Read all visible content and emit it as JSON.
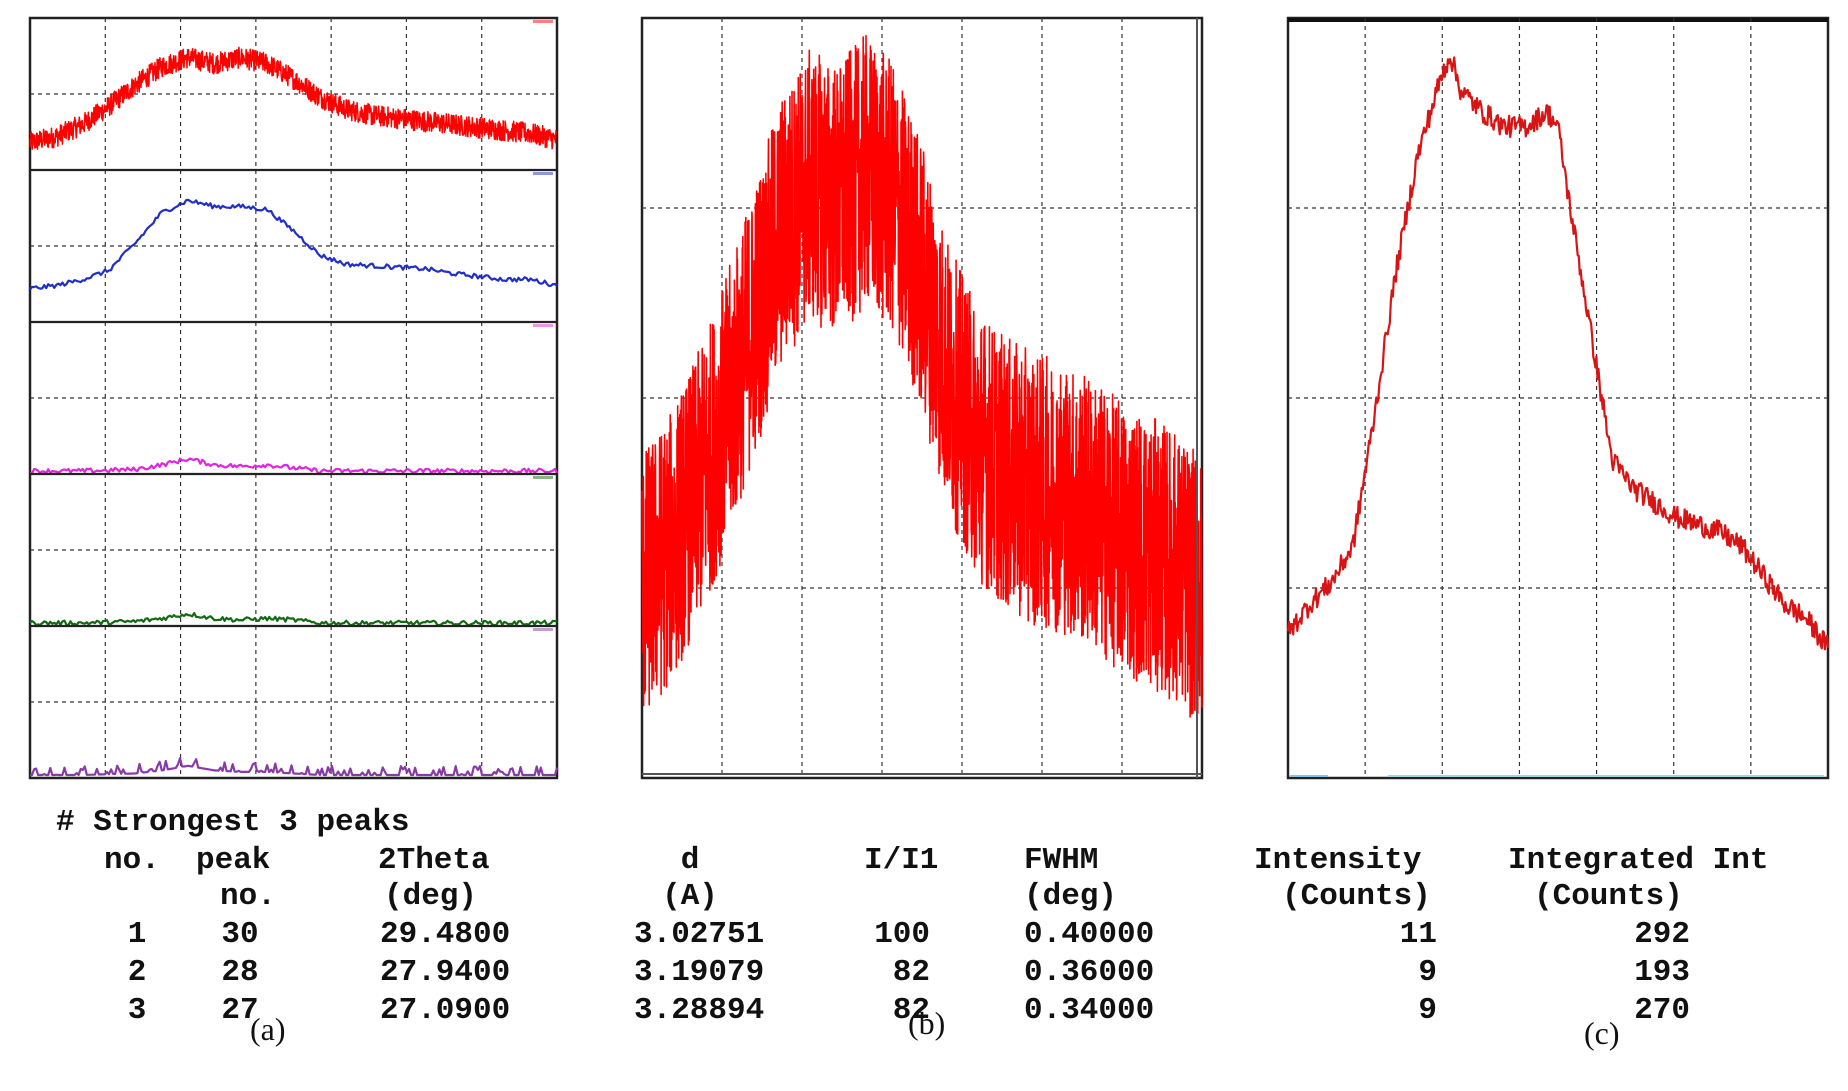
{
  "panels": {
    "a": {
      "caption": "(a)"
    },
    "b": {
      "caption": "(b)"
    },
    "c": {
      "caption": "(c)"
    }
  },
  "peak_table": {
    "title": "# Strongest 3 peaks",
    "headers": [
      [
        "no.",
        ""
      ],
      [
        "peak",
        "no."
      ],
      [
        "2Theta",
        "(deg)"
      ],
      [
        "d",
        "(A)"
      ],
      [
        "I/I1",
        ""
      ],
      [
        "FWHM",
        "(deg)"
      ],
      [
        "Intensity",
        "(Counts)"
      ],
      [
        "Integrated Int",
        "(Counts)"
      ]
    ],
    "rows": [
      [
        "1",
        "30",
        "29.4800",
        "3.02751",
        "100",
        "0.40000",
        "11",
        "292"
      ],
      [
        "2",
        "28",
        "27.9400",
        "3.19079",
        "82",
        "0.36000",
        "9",
        "193"
      ],
      [
        "3",
        "27",
        "27.0900",
        "3.28894",
        "82",
        "0.34000",
        "9",
        "270"
      ]
    ]
  },
  "chart_data": [
    {
      "panel": "(a)",
      "type": "line",
      "title": "",
      "xlabel": "",
      "ylabel": "",
      "grid": true,
      "grid_divisions": {
        "x": 7,
        "y_per_strip": 2
      },
      "stacked_strips": 5,
      "series": [
        {
          "color": "#ff0000",
          "noise": "high",
          "x": [
            0,
            5,
            10,
            15,
            20,
            25,
            30,
            35,
            40,
            45,
            50,
            55,
            60,
            65,
            70,
            75,
            80,
            85,
            90,
            95,
            100
          ],
          "y": [
            0.18,
            0.22,
            0.3,
            0.42,
            0.56,
            0.68,
            0.74,
            0.7,
            0.74,
            0.7,
            0.6,
            0.48,
            0.4,
            0.36,
            0.34,
            0.32,
            0.3,
            0.28,
            0.26,
            0.24,
            0.2
          ]
        },
        {
          "color": "#1f2fc8",
          "noise": "low",
          "x": [
            0,
            5,
            10,
            15,
            20,
            25,
            30,
            35,
            40,
            45,
            50,
            55,
            60,
            65,
            70,
            75,
            80,
            85,
            90,
            95,
            100
          ],
          "y": [
            0.22,
            0.24,
            0.28,
            0.34,
            0.52,
            0.72,
            0.8,
            0.76,
            0.76,
            0.74,
            0.6,
            0.44,
            0.38,
            0.37,
            0.36,
            0.35,
            0.32,
            0.3,
            0.28,
            0.28,
            0.24
          ]
        },
        {
          "color": "#e024e0",
          "noise": "low",
          "x": [
            0,
            10,
            20,
            25,
            30,
            35,
            40,
            45,
            50,
            55,
            60,
            70,
            80,
            90,
            100
          ],
          "y": [
            0.02,
            0.02,
            0.03,
            0.06,
            0.1,
            0.06,
            0.05,
            0.06,
            0.04,
            0.02,
            0.02,
            0.02,
            0.02,
            0.02,
            0.02
          ]
        },
        {
          "color": "#126b12",
          "noise": "low",
          "x": [
            0,
            10,
            20,
            25,
            30,
            35,
            40,
            45,
            50,
            55,
            60,
            70,
            80,
            90,
            100
          ],
          "y": [
            0.02,
            0.02,
            0.03,
            0.05,
            0.08,
            0.05,
            0.04,
            0.05,
            0.04,
            0.02,
            0.02,
            0.02,
            0.02,
            0.02,
            0.02
          ]
        },
        {
          "color": "#8a3aa8",
          "noise": "spiky",
          "x": [
            0,
            10,
            20,
            25,
            30,
            35,
            40,
            45,
            50,
            55,
            60,
            70,
            80,
            90,
            100
          ],
          "y": [
            0.02,
            0.02,
            0.03,
            0.05,
            0.08,
            0.05,
            0.04,
            0.04,
            0.03,
            0.02,
            0.02,
            0.02,
            0.02,
            0.02,
            0.02
          ]
        }
      ]
    },
    {
      "panel": "(b)",
      "type": "line",
      "title": "",
      "xlabel": "",
      "ylabel": "",
      "grid": true,
      "grid_divisions": {
        "x": 7,
        "y": 4
      },
      "ylim": [
        0,
        1
      ],
      "series": [
        {
          "color": "#ff0000",
          "noise": "very high",
          "x": [
            0,
            5,
            10,
            15,
            20,
            25,
            30,
            35,
            40,
            45,
            50,
            55,
            60,
            65,
            70,
            75,
            80,
            85,
            90,
            95,
            100
          ],
          "y": [
            0.25,
            0.3,
            0.38,
            0.48,
            0.6,
            0.72,
            0.78,
            0.76,
            0.8,
            0.76,
            0.66,
            0.52,
            0.44,
            0.4,
            0.38,
            0.37,
            0.35,
            0.32,
            0.3,
            0.28,
            0.24
          ]
        }
      ]
    },
    {
      "panel": "(c)",
      "type": "line",
      "title": "",
      "xlabel": "",
      "ylabel": "",
      "grid": true,
      "grid_divisions": {
        "x": 7,
        "y": 4
      },
      "ylim": [
        0,
        1
      ],
      "series": [
        {
          "color": "#d81414",
          "noise": "low",
          "x": [
            0,
            4,
            8,
            12,
            16,
            20,
            24,
            28,
            30,
            32,
            36,
            40,
            44,
            48,
            50,
            52,
            56,
            60,
            64,
            68,
            72,
            76,
            80,
            84,
            88,
            92,
            96,
            100
          ],
          "y": [
            0.2,
            0.24,
            0.27,
            0.32,
            0.5,
            0.7,
            0.86,
            0.96,
            1.0,
            0.95,
            0.92,
            0.9,
            0.9,
            0.92,
            0.9,
            0.8,
            0.62,
            0.44,
            0.4,
            0.38,
            0.36,
            0.35,
            0.34,
            0.32,
            0.28,
            0.24,
            0.22,
            0.18
          ]
        }
      ]
    }
  ]
}
